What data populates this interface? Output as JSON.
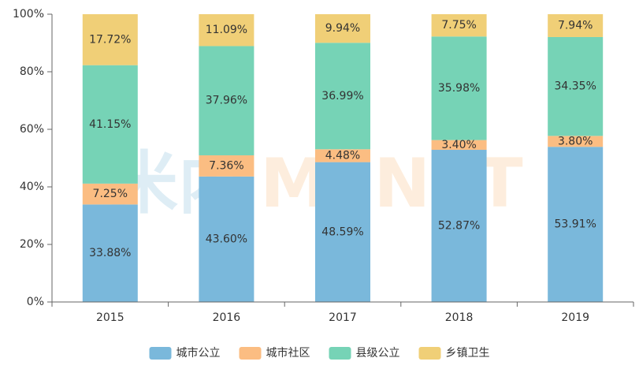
{
  "watermark": {
    "left": "米内",
    "right": "MENET"
  },
  "chart_data": {
    "type": "bar",
    "stacked": true,
    "percent_stacked": true,
    "categories": [
      "2015",
      "2016",
      "2017",
      "2018",
      "2019"
    ],
    "ylim": [
      0,
      100
    ],
    "yticks": [
      0,
      20,
      40,
      60,
      80,
      100
    ],
    "ytick_labels": [
      "0%",
      "20%",
      "40%",
      "60%",
      "80%",
      "100%"
    ],
    "grid": false,
    "legend": "bottom",
    "series": [
      {
        "name": "城市公立",
        "color": "#7ab8db",
        "values": [
          33.88,
          43.6,
          48.59,
          52.87,
          53.91
        ],
        "labels": [
          "33.88%",
          "43.60%",
          "48.59%",
          "52.87%",
          "53.91%"
        ]
      },
      {
        "name": "城市社区",
        "color": "#fbbd82",
        "values": [
          7.25,
          7.36,
          4.48,
          3.4,
          3.8
        ],
        "labels": [
          "7.25%",
          "7.36%",
          "4.48%",
          "3.40%",
          "3.80%"
        ]
      },
      {
        "name": "县级公立",
        "color": "#76d3b6",
        "values": [
          41.15,
          37.96,
          36.99,
          35.98,
          34.35
        ],
        "labels": [
          "41.15%",
          "37.96%",
          "36.99%",
          "35.98%",
          "34.35%"
        ]
      },
      {
        "name": "乡镇卫生",
        "color": "#f0cf77",
        "values": [
          17.72,
          11.09,
          9.94,
          7.75,
          7.94
        ],
        "labels": [
          "17.72%",
          "11.09%",
          "9.94%",
          "7.75%",
          "7.94%"
        ]
      }
    ]
  }
}
